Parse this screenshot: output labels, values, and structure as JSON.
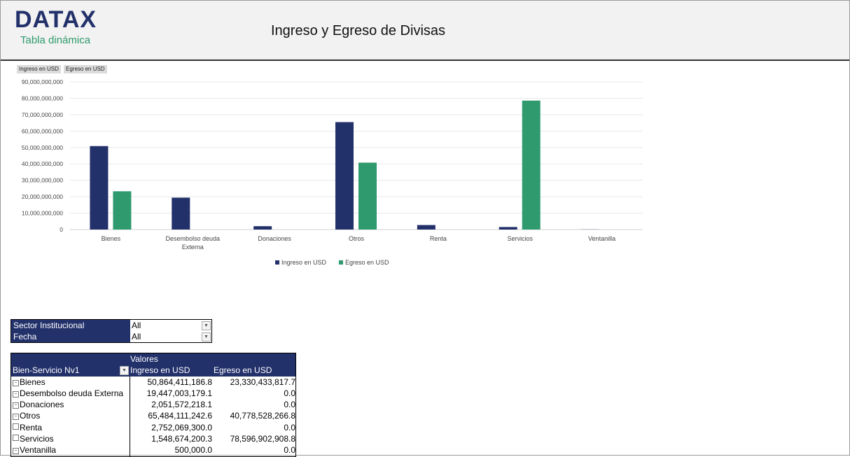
{
  "header": {
    "logo": "DATAX",
    "subtitle": "Tabla dinámica",
    "title": "Ingreso y Egreso de Divisas"
  },
  "field_buttons": [
    "Ingreso en USD",
    "Egreso en USD"
  ],
  "colors": {
    "ingreso": "#23316b",
    "egreso": "#2f9a6e",
    "header_bg": "#f2f2f2"
  },
  "chart_data": {
    "type": "bar",
    "categories": [
      "Bienes",
      "Desembolso deuda Externa",
      "Donaciones",
      "Otros",
      "Renta",
      "Servicios",
      "Ventanilla"
    ],
    "series": [
      {
        "name": "Ingreso en USD",
        "values": [
          50864411186.8,
          19447003179.1,
          2051572218.1,
          65484111242.6,
          2752069300.0,
          1548674200.3,
          500000.0
        ]
      },
      {
        "name": "Egreso en USD",
        "values": [
          23330433817.7,
          0,
          0,
          40778528266.8,
          0,
          78596902908.8,
          0
        ]
      }
    ],
    "ylim": [
      0,
      90000000000
    ],
    "yticks": [
      "0",
      "10,000,000,000",
      "20,000,000,000",
      "30,000,000,000",
      "40,000,000,000",
      "50,000,000,000",
      "60,000,000,000",
      "70,000,000,000",
      "80,000,000,000",
      "90,000,000,000"
    ],
    "grid": true,
    "legend": "bottom"
  },
  "filters": [
    {
      "label": "Sector Institucional",
      "value": "All"
    },
    {
      "label": "Fecha",
      "value": "All"
    }
  ],
  "pivot": {
    "values_label": "Valores",
    "row_header": "Bien-Servicio Nv1",
    "columns": [
      "Ingreso en USD",
      "Egreso en USD"
    ],
    "rows": [
      {
        "label": "Bienes",
        "ingreso": "50,864,411,186.8",
        "egreso": "23,330,433,817.7"
      },
      {
        "label": "Desembolso deuda Externa",
        "ingreso": "19,447,003,179.1",
        "egreso": "0.0"
      },
      {
        "label": "Donaciones",
        "ingreso": "2,051,572,218.1",
        "egreso": "0.0"
      },
      {
        "label": "Otros",
        "ingreso": "65,484,111,242.6",
        "egreso": "40,778,528,266.8"
      },
      {
        "label": "Renta",
        "ingreso": "2,752,069,300.0",
        "egreso": "0.0"
      },
      {
        "label": "Servicios",
        "ingreso": "1,548,674,200.3",
        "egreso": "78,596,902,908.8"
      },
      {
        "label": "Ventanilla",
        "ingreso": "500,000.0",
        "egreso": "0.0"
      }
    ]
  }
}
